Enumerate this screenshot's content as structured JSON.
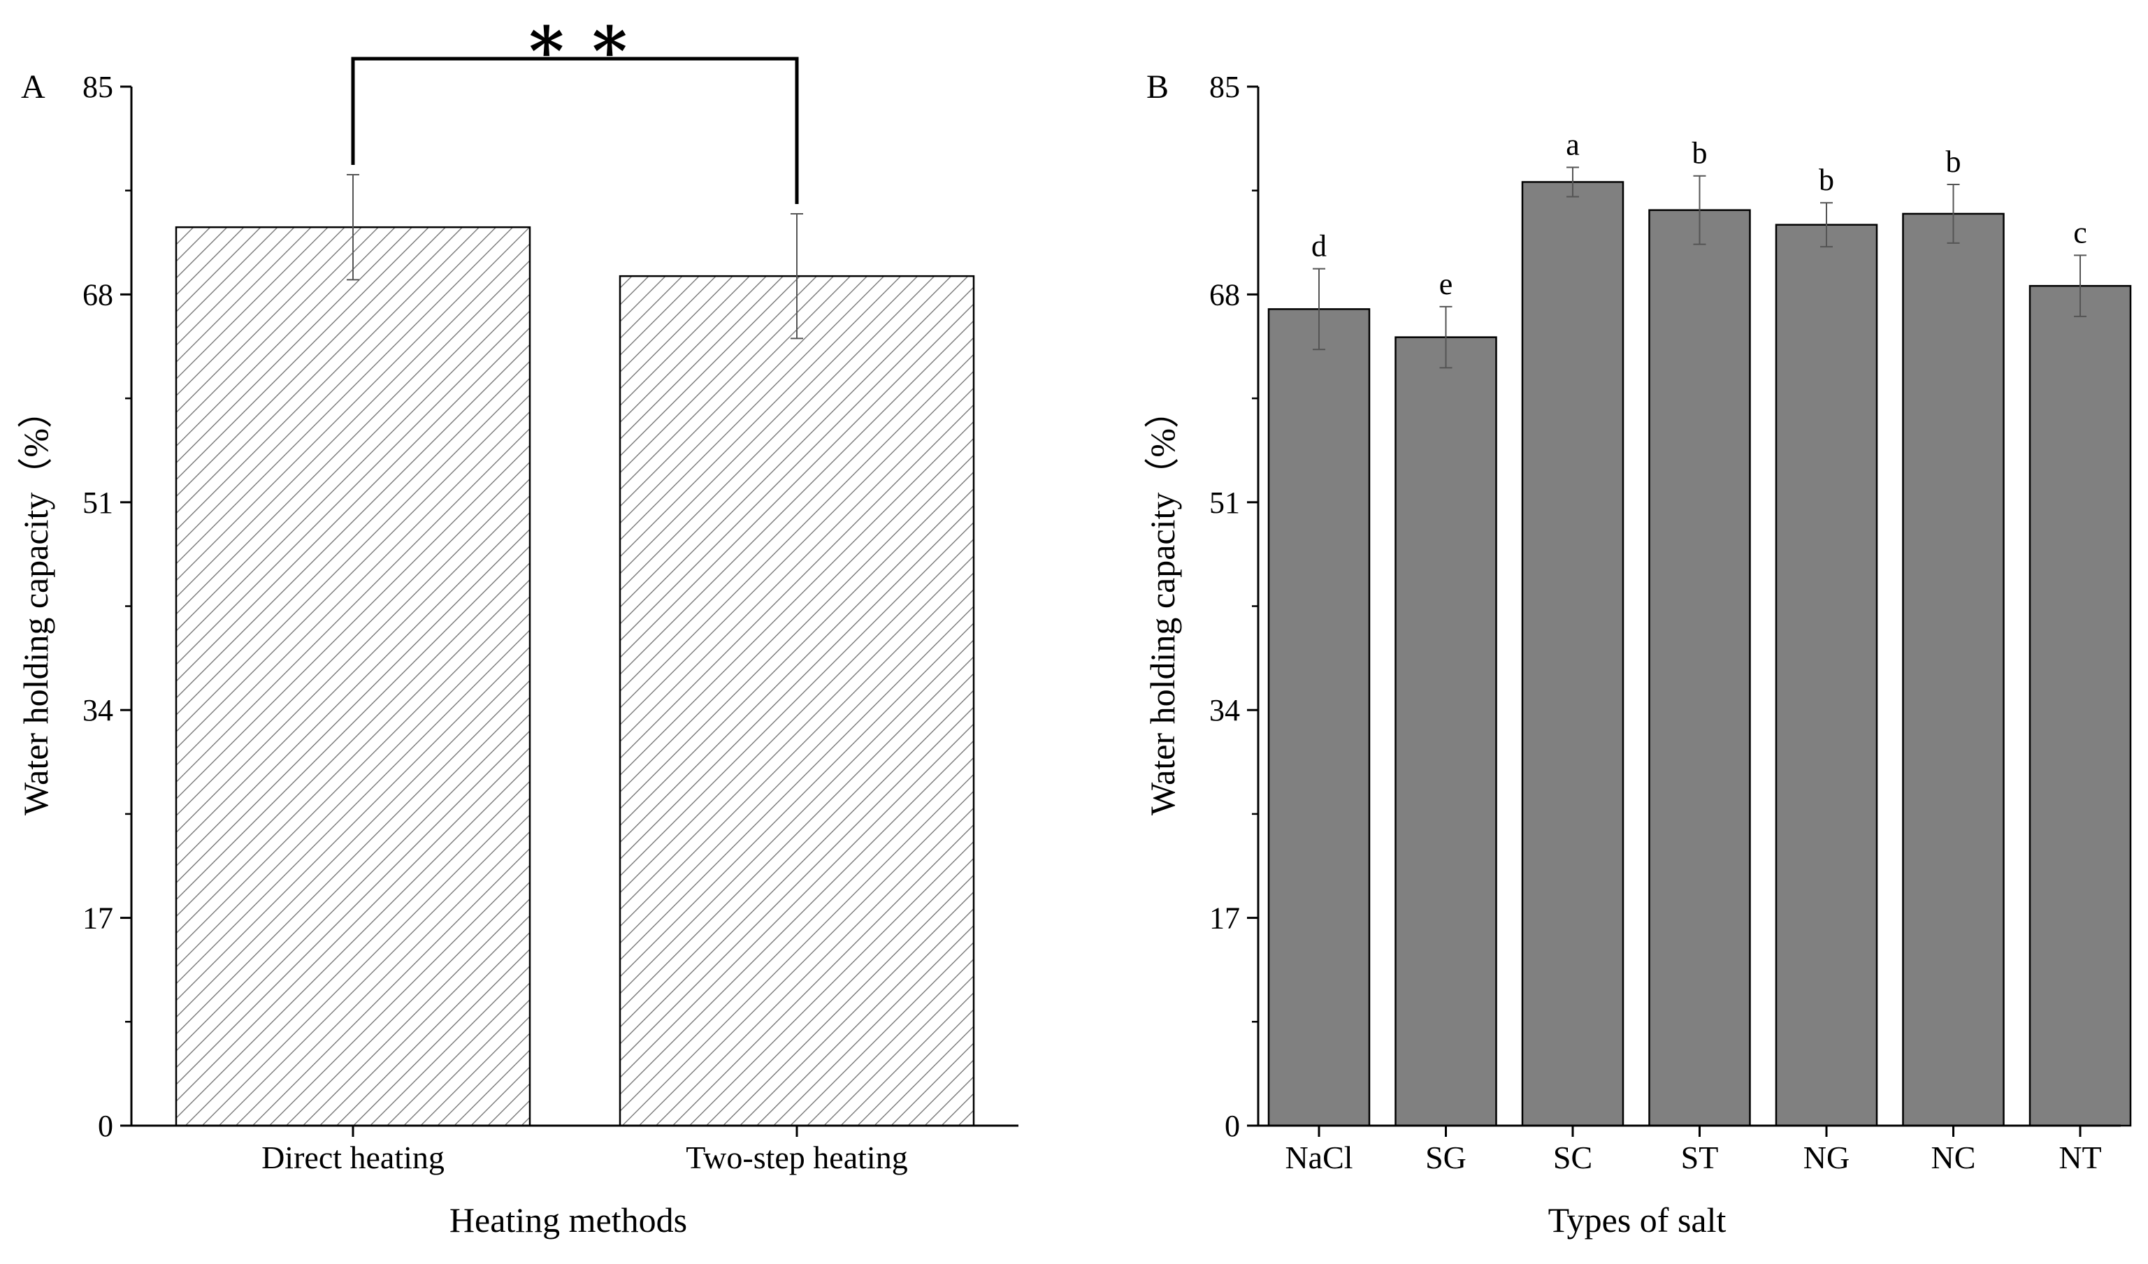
{
  "chart_data": [
    {
      "panel": "A",
      "type": "bar",
      "pattern": "hatched",
      "categories": [
        "Direct heating",
        "Two-step heating"
      ],
      "values": [
        73.5,
        69.5
      ],
      "errors": [
        4.3,
        5.1
      ],
      "xlabel": "Heating methods",
      "ylabel": "Water holding capacity（%）",
      "ylim": [
        0,
        85
      ],
      "yticks": [
        "0",
        "17",
        "34",
        "51",
        "68",
        "85"
      ],
      "significance": "∗ ∗"
    },
    {
      "panel": "B",
      "type": "bar",
      "categories": [
        "NaCl",
        "SG",
        "SC",
        "ST",
        "NG",
        "NC",
        "NT"
      ],
      "values": [
        66.8,
        64.5,
        77.2,
        74.9,
        73.7,
        74.6,
        68.7
      ],
      "errors": [
        3.3,
        2.5,
        1.2,
        2.8,
        1.8,
        2.4,
        2.5
      ],
      "letters": [
        "d",
        "e",
        "a",
        "b",
        "b",
        "b",
        "c"
      ],
      "xlabel": "Types of salt",
      "ylabel": "Water holding capacity（%）",
      "ylim": [
        0,
        85
      ],
      "yticks": [
        "0",
        "17",
        "34",
        "51",
        "68",
        "85"
      ]
    }
  ],
  "colors": {
    "bar_fill_b": "#808080",
    "hatch": "#6e6e6e",
    "axis": "#000000"
  }
}
